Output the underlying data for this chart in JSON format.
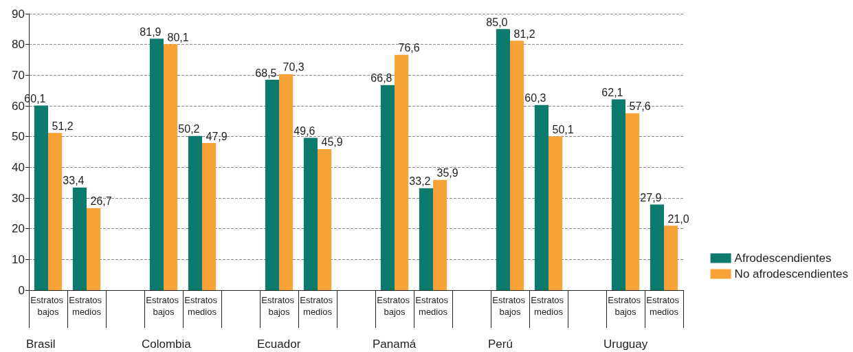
{
  "chart_data": {
    "type": "bar",
    "categories": [
      "Estratos bajos",
      "Estratos medios",
      null,
      "Estratos bajos",
      "Estratos medios",
      null,
      "Estratos bajos",
      "Estratos medios",
      null,
      "Estratos bajos",
      "Estratos medios",
      null,
      "Estratos bajos",
      "Estratos medios",
      null,
      "Estratos bajos",
      "Estratos medios"
    ],
    "series": [
      {
        "name": "Afrodescendientes",
        "color": "#0e7a6b",
        "values": [
          60.1,
          33.4,
          null,
          81.9,
          50.2,
          null,
          68.5,
          49.6,
          null,
          66.8,
          33.2,
          null,
          85.0,
          60.3,
          null,
          62.1,
          27.9
        ],
        "value_labels": [
          "60,1",
          "33,4",
          null,
          "81,9",
          "50,2",
          null,
          "68,5",
          "49,6",
          null,
          "66,8",
          "33,2",
          null,
          "85,0",
          "60,3",
          null,
          "62,1",
          "27,9"
        ]
      },
      {
        "name": "No afrodescendientes",
        "color": "#f7a33a",
        "values": [
          51.2,
          26.7,
          null,
          80.1,
          47.9,
          null,
          70.3,
          45.9,
          null,
          76.6,
          35.9,
          null,
          81.2,
          50.1,
          null,
          57.6,
          21.0
        ],
        "value_labels": [
          "51,2",
          "26,7",
          null,
          "80,1",
          "47,9",
          null,
          "70,3",
          "45,9",
          null,
          "76,6",
          "35,9",
          null,
          "81,2",
          "50,1",
          null,
          "57,6",
          "21,0"
        ]
      }
    ],
    "annotations": [
      "Brasil",
      "Colombia",
      "Ecuador",
      "Panamá",
      "Perú",
      "Uruguay"
    ],
    "ylim": [
      0,
      90
    ],
    "yticks": [
      0,
      10,
      20,
      30,
      40,
      50,
      60,
      70,
      80,
      90
    ],
    "grid": "y",
    "legend": "bottom right"
  }
}
